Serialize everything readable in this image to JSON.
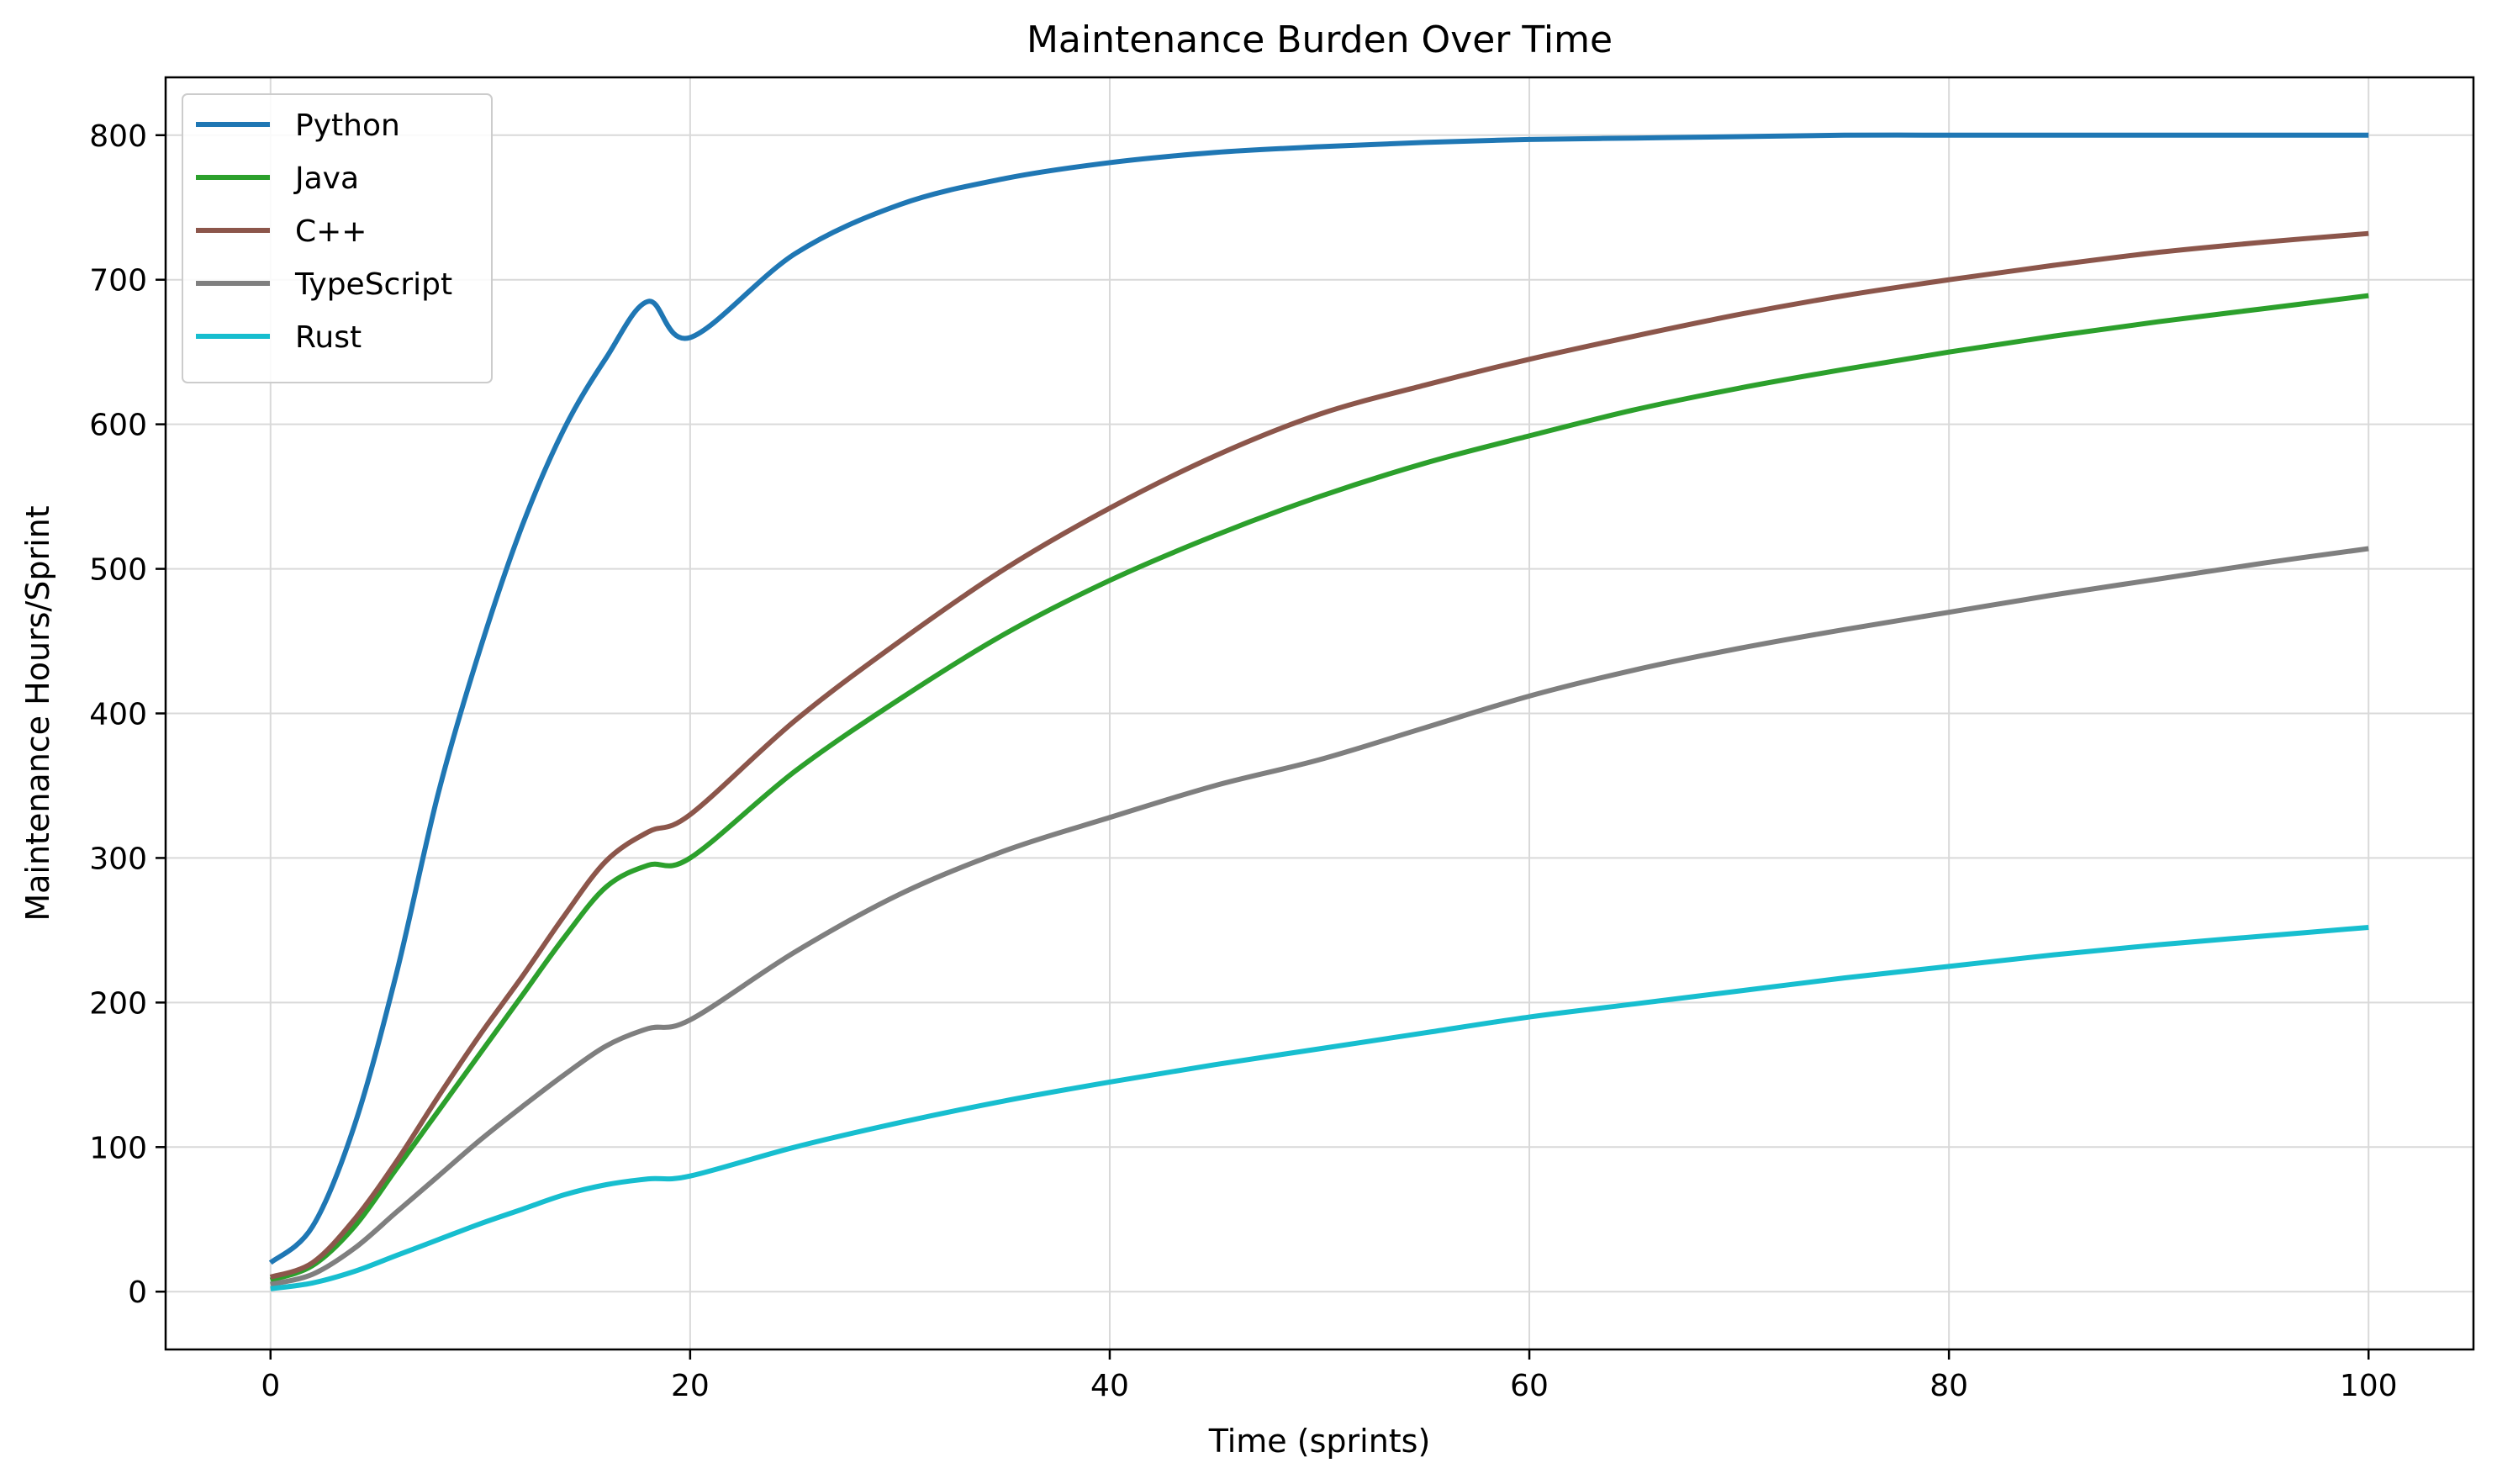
{
  "chart_data": {
    "type": "line",
    "title": "Maintenance Burden Over Time",
    "xlabel": "Time (sprints)",
    "ylabel": "Maintenance Hours/Sprint",
    "xlim": [
      -5,
      105
    ],
    "ylim": [
      -40,
      840
    ],
    "xticks": [
      0,
      20,
      40,
      60,
      80,
      100
    ],
    "yticks": [
      0,
      100,
      200,
      300,
      400,
      500,
      600,
      700,
      800
    ],
    "grid": true,
    "legend_position": "top-left",
    "x": [
      0,
      2,
      4,
      6,
      8,
      10,
      12,
      14,
      16,
      18,
      20,
      25,
      30,
      35,
      40,
      45,
      50,
      55,
      60,
      65,
      70,
      75,
      80,
      85,
      90,
      95,
      100
    ],
    "series": [
      {
        "name": "Python",
        "color": "#1f77b4",
        "values": [
          20,
          45,
          115,
          220,
          345,
          445,
          530,
          597,
          646,
          685,
          660,
          718,
          752,
          770,
          781,
          788,
          792,
          795,
          797,
          798,
          799,
          800,
          800,
          800,
          800,
          800,
          800
        ]
      },
      {
        "name": "Java",
        "color": "#2ca02c",
        "values": [
          8,
          18,
          45,
          85,
          125,
          165,
          205,
          245,
          280,
          295,
          300,
          360,
          410,
          455,
          492,
          523,
          550,
          573,
          592,
          610,
          625,
          638,
          650,
          661,
          671,
          680,
          689
        ]
      },
      {
        "name": "C++",
        "color": "#8c564b",
        "values": [
          10,
          20,
          50,
          90,
          135,
          178,
          218,
          260,
          298,
          318,
          330,
          395,
          450,
          500,
          542,
          578,
          607,
          627,
          645,
          661,
          676,
          689,
          700,
          710,
          719,
          726,
          732
        ]
      },
      {
        "name": "TypeScript",
        "color": "#7f7f7f",
        "values": [
          5,
          12,
          30,
          55,
          80,
          105,
          128,
          150,
          170,
          182,
          188,
          235,
          275,
          305,
          328,
          350,
          368,
          390,
          412,
          430,
          445,
          458,
          470,
          482,
          493,
          504,
          514
        ]
      },
      {
        "name": "Rust",
        "color": "#17becf",
        "values": [
          2,
          6,
          14,
          25,
          36,
          47,
          57,
          67,
          74,
          78,
          80,
          100,
          117,
          132,
          145,
          157,
          168,
          179,
          190,
          199,
          208,
          217,
          225,
          233,
          240,
          246,
          252
        ]
      }
    ]
  }
}
